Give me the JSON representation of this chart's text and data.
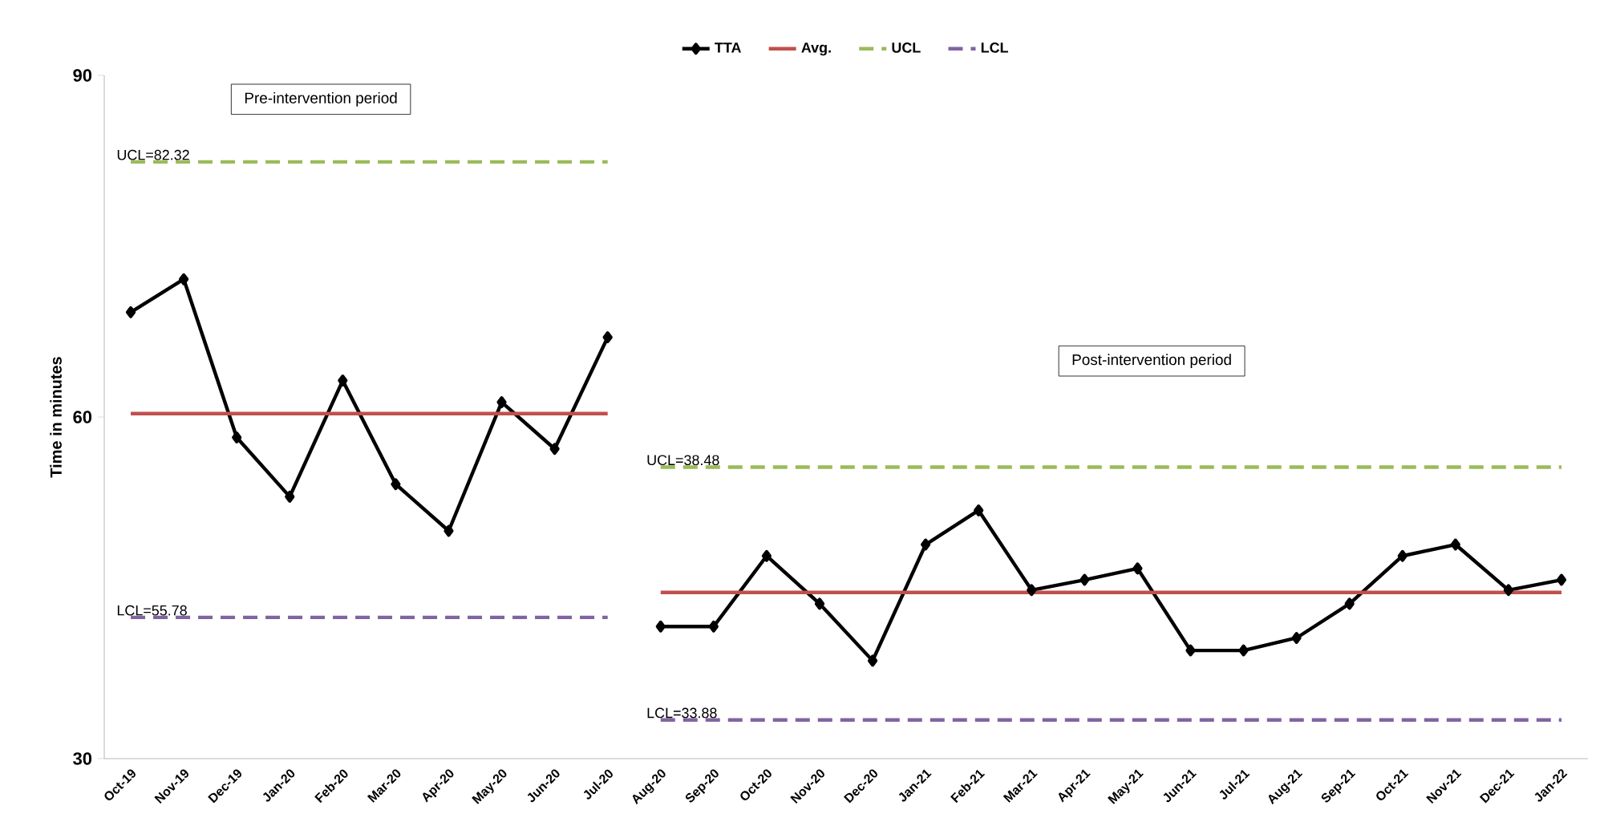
{
  "chart_data": {
    "type": "line",
    "ylabel": "Time in minutes",
    "categories": [
      "Oct-19",
      "Nov-19",
      "Dec-19",
      "Jan-20",
      "Feb-20",
      "Mar-20",
      "Apr-20",
      "May-20",
      "Jun-20",
      "Jul-20",
      "Aug-20",
      "Sep-20",
      "Oct-20",
      "Nov-20",
      "Dec-20",
      "Jan-21",
      "Feb-21",
      "Mar-21",
      "Apr-21",
      "May-21",
      "Jun-21",
      "Jul-21",
      "Aug-21",
      "Sep-21",
      "Oct-21",
      "Nov-21",
      "Dec-21",
      "Jan-22"
    ],
    "ylim": [
      30,
      90
    ],
    "yticks": [
      30,
      60,
      90
    ],
    "grid": false,
    "legend": "top",
    "series": [
      {
        "name": "TTA",
        "color": "#000000",
        "marker": "diamond",
        "line_style": "solid",
        "values": [
          69.2,
          72.1,
          58.2,
          53.0,
          63.2,
          54.1,
          50.0,
          61.3,
          57.2,
          67.0,
          null,
          null,
          null,
          null,
          null,
          null,
          null,
          null,
          null,
          null,
          null,
          null,
          null,
          null,
          null,
          null,
          null,
          null
        ]
      },
      {
        "color": "#000000",
        "marker": "diamond",
        "line_style": "solid",
        "values": [
          null,
          null,
          null,
          null,
          null,
          null,
          null,
          null,
          null,
          null,
          41.6,
          41.6,
          47.8,
          43.6,
          38.6,
          48.8,
          51.8,
          44.8,
          45.7,
          46.7,
          39.5,
          39.5,
          40.6,
          43.6,
          47.8,
          48.8,
          44.8,
          45.7
        ]
      },
      {
        "name": "Avg.",
        "color": "#c0504d",
        "marker": "none",
        "line_style": "solid",
        "values": [
          60.3,
          60.3,
          60.3,
          60.3,
          60.3,
          60.3,
          60.3,
          60.3,
          60.3,
          60.3,
          null,
          null,
          null,
          null,
          null,
          null,
          null,
          null,
          null,
          null,
          null,
          null,
          null,
          null,
          null,
          null,
          null,
          null
        ]
      },
      {
        "color": "#c0504d",
        "marker": "none",
        "line_style": "solid",
        "values": [
          null,
          null,
          null,
          null,
          null,
          null,
          null,
          null,
          null,
          null,
          44.6,
          44.6,
          44.6,
          44.6,
          44.6,
          44.6,
          44.6,
          44.6,
          44.6,
          44.6,
          44.6,
          44.6,
          44.6,
          44.6,
          44.6,
          44.6,
          44.6,
          44.6
        ]
      },
      {
        "name": "UCL",
        "color": "#9bbb59",
        "marker": "none",
        "line_style": "dashed",
        "values": [
          82.4,
          82.4,
          82.4,
          82.4,
          82.4,
          82.4,
          82.4,
          82.4,
          82.4,
          82.4,
          null,
          null,
          null,
          null,
          null,
          null,
          null,
          null,
          null,
          null,
          null,
          null,
          null,
          null,
          null,
          null,
          null,
          null
        ]
      },
      {
        "color": "#9bbb59",
        "marker": "none",
        "line_style": "dashed",
        "values": [
          null,
          null,
          null,
          null,
          null,
          null,
          null,
          null,
          null,
          null,
          55.6,
          55.6,
          55.6,
          55.6,
          55.6,
          55.6,
          55.6,
          55.6,
          55.6,
          55.6,
          55.6,
          55.6,
          55.6,
          55.6,
          55.6,
          55.6,
          55.6,
          55.6
        ]
      },
      {
        "name": "LCL",
        "color": "#8064a2",
        "marker": "none",
        "line_style": "dashed",
        "values": [
          42.4,
          42.4,
          42.4,
          42.4,
          42.4,
          42.4,
          42.4,
          42.4,
          42.4,
          42.4,
          null,
          null,
          null,
          null,
          null,
          null,
          null,
          null,
          null,
          null,
          null,
          null,
          null,
          null,
          null,
          null,
          null,
          null
        ]
      },
      {
        "color": "#8064a2",
        "marker": "none",
        "line_style": "dashed",
        "values": [
          null,
          null,
          null,
          null,
          null,
          null,
          null,
          null,
          null,
          null,
          33.4,
          33.4,
          33.4,
          33.4,
          33.4,
          33.4,
          33.4,
          33.4,
          33.4,
          33.4,
          33.4,
          33.4,
          33.4,
          33.4,
          33.4,
          33.4,
          33.4,
          33.4
        ]
      }
    ],
    "annotations": [
      "Pre-intervention period",
      "Post-intervention period",
      {
        "text": "UCL=82.32",
        "x": "Oct-19",
        "y": 82.4
      },
      {
        "text": "LCL=55.78",
        "x": "Oct-19",
        "y": 42.4
      },
      {
        "text": "UCL=38.48",
        "x": "Aug-20",
        "y": 55.6
      },
      {
        "text": "LCL=33.88",
        "x": "Aug-20",
        "y": 33.4
      }
    ]
  }
}
